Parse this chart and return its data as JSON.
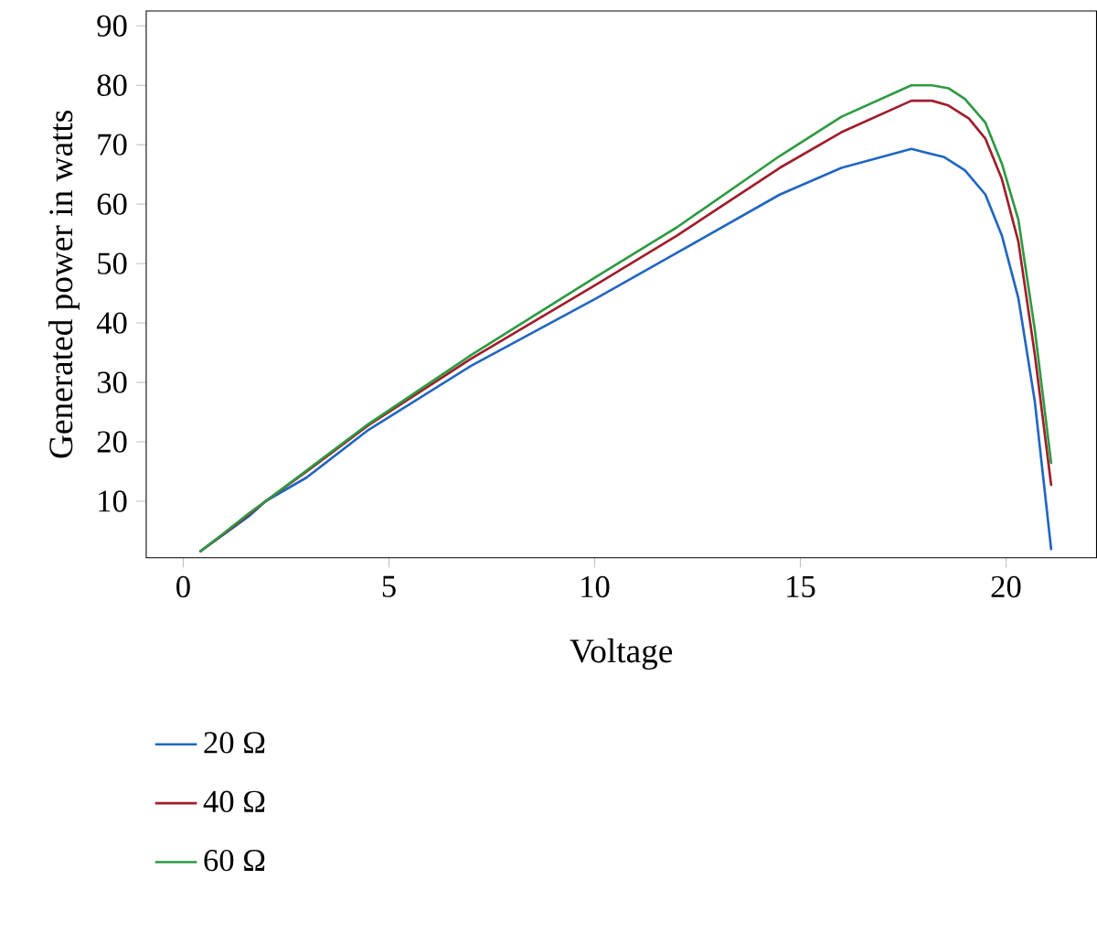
{
  "chart_data": {
    "type": "line",
    "xlabel": "Voltage",
    "ylabel": "Generated power in watts",
    "xlim": [
      -0.9,
      22.2
    ],
    "ylim": [
      0.5,
      92.5
    ],
    "xticks": [
      0,
      5,
      10,
      15,
      20
    ],
    "yticks": [
      10,
      20,
      30,
      40,
      50,
      60,
      70,
      80,
      90
    ],
    "grid": false,
    "legend": "bottom left",
    "line_style": "solid",
    "marker": "none",
    "series": [
      {
        "name": "20 Ω",
        "color": "#2166c0",
        "x": [
          0.4,
          1.0,
          1.6,
          2.0,
          3.0,
          4.5,
          7.0,
          10.0,
          12.0,
          14.5,
          16.0,
          17.7,
          18.5,
          19.0,
          19.5,
          19.9,
          20.3,
          20.7,
          21.1
        ],
        "values": [
          1.5,
          4.5,
          7.5,
          10,
          14,
          22,
          32.8,
          44,
          51.8,
          61.6,
          66.1,
          69.3,
          67.9,
          65.7,
          61.6,
          54.7,
          44.2,
          26.8,
          1.8
        ]
      },
      {
        "name": "40 Ω",
        "color": "#a01d2b",
        "x": [
          0.4,
          1.0,
          1.6,
          2.0,
          3.0,
          4.5,
          7.0,
          10.0,
          12.0,
          14.5,
          16.0,
          17.7,
          18.2,
          18.6,
          19.1,
          19.5,
          19.9,
          20.3,
          20.7,
          21.1
        ],
        "values": [
          1.5,
          4.6,
          7.8,
          10,
          15,
          22.8,
          34,
          46.3,
          54.7,
          66.1,
          72.1,
          77.4,
          77.4,
          76.6,
          74.4,
          71,
          64.2,
          53.7,
          34.7,
          12.6
        ]
      },
      {
        "name": "60 Ω",
        "color": "#2e9a42",
        "x": [
          0.4,
          1.0,
          1.6,
          2.0,
          3.0,
          4.5,
          7.0,
          10.0,
          12.0,
          14.5,
          16.0,
          17.7,
          18.2,
          18.6,
          19.0,
          19.5,
          19.9,
          20.3,
          20.7,
          21.1
        ],
        "values": [
          1.5,
          4.7,
          8,
          10,
          15.2,
          23,
          34.6,
          47.6,
          56.1,
          68.1,
          74.7,
          80,
          80,
          79.5,
          77.7,
          73.7,
          66.8,
          57.4,
          38.9,
          16.3
        ]
      }
    ]
  }
}
